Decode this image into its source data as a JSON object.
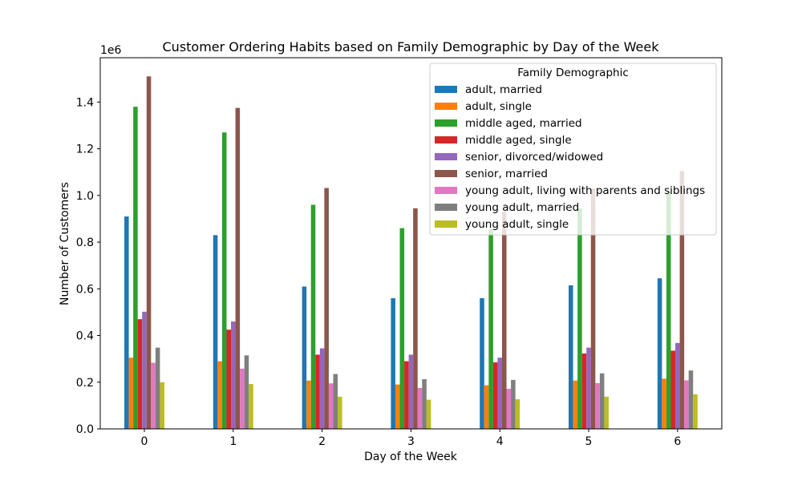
{
  "chart_data": {
    "type": "bar",
    "title": "Customer Ordering Habits based on Family Demographic by Day of the Week",
    "xlabel": "Day of the Week",
    "ylabel": "Number of Customers",
    "y_scale_label": "1e6",
    "ylim": [
      0,
      1590000
    ],
    "yticks": [
      0,
      200000,
      400000,
      600000,
      800000,
      1000000,
      1200000,
      1400000
    ],
    "yticklabels": [
      "0.0",
      "0.2",
      "0.4",
      "0.6",
      "0.8",
      "1.0",
      "1.2",
      "1.4"
    ],
    "categories": [
      "0",
      "1",
      "2",
      "3",
      "4",
      "5",
      "6"
    ],
    "legend": {
      "title": "Family Demographic",
      "placement": "upper right"
    },
    "grid": false,
    "series": [
      {
        "name": "adult, married",
        "color": "#1f77b4",
        "values": [
          910000,
          830000,
          610000,
          560000,
          560000,
          615000,
          645000
        ]
      },
      {
        "name": "adult, single",
        "color": "#ff7f0e",
        "values": [
          305000,
          290000,
          207000,
          190000,
          187000,
          207000,
          215000
        ]
      },
      {
        "name": "middle aged, married",
        "color": "#2ca02c",
        "values": [
          1380000,
          1270000,
          960000,
          860000,
          855000,
          945000,
          1015000
        ]
      },
      {
        "name": "middle aged, single",
        "color": "#d62728",
        "values": [
          470000,
          425000,
          318000,
          290000,
          285000,
          323000,
          335000
        ]
      },
      {
        "name": "senior, divorced/widowed",
        "color": "#9467bd",
        "values": [
          502000,
          460000,
          345000,
          318000,
          305000,
          348000,
          368000
        ]
      },
      {
        "name": "senior, married",
        "color": "#8c564b",
        "values": [
          1510000,
          1375000,
          1032000,
          945000,
          930000,
          1030000,
          1105000
        ]
      },
      {
        "name": "young adult, living with parents and siblings",
        "color": "#e377c2",
        "values": [
          283000,
          258000,
          195000,
          175000,
          172000,
          196000,
          208000
        ]
      },
      {
        "name": "young adult, married",
        "color": "#7f7f7f",
        "values": [
          348000,
          315000,
          235000,
          213000,
          210000,
          238000,
          250000
        ]
      },
      {
        "name": "young adult, single",
        "color": "#bcbd22",
        "values": [
          200000,
          192000,
          138000,
          125000,
          127000,
          138000,
          148000
        ]
      }
    ]
  }
}
